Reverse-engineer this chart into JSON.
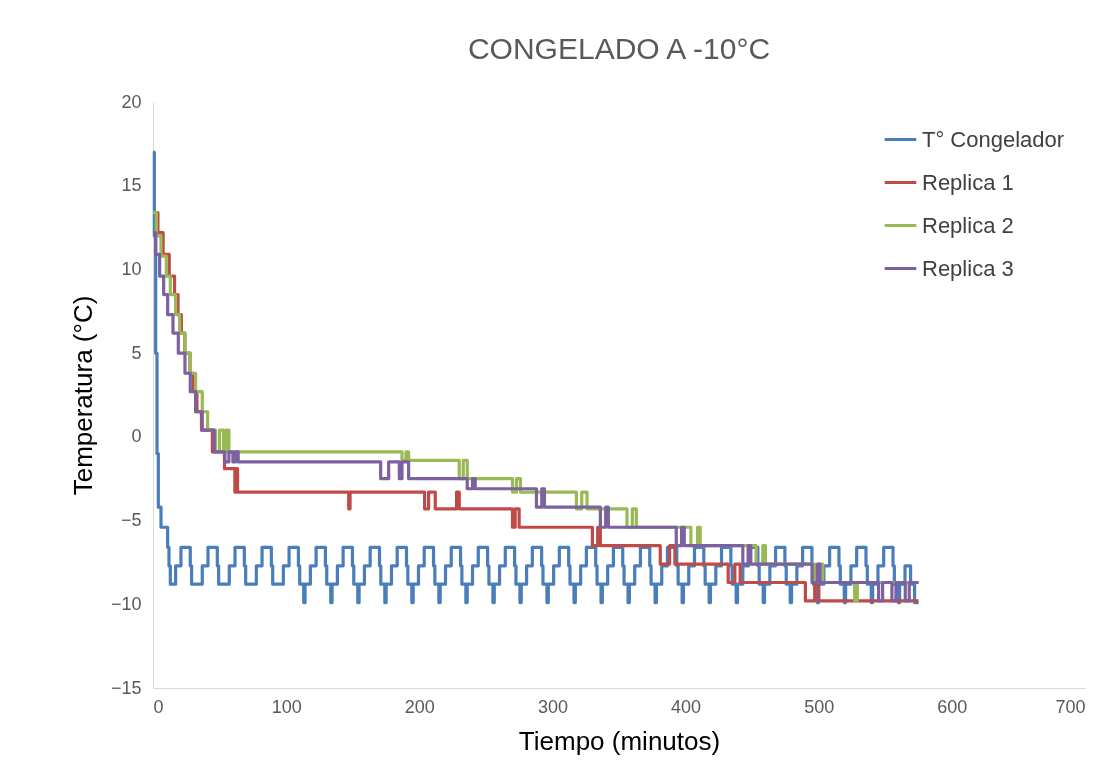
{
  "chart_data": {
    "type": "step",
    "title": "CONGELADO A -10°C",
    "xlabel": "Tiempo (minutos)",
    "ylabel": "Temperatura (°C)",
    "xlim": [
      0,
      700
    ],
    "xticks": [
      0,
      100,
      200,
      300,
      400,
      500,
      600,
      700
    ],
    "ylim": [
      -15,
      20
    ],
    "yticks": [
      -15,
      -10,
      -5,
      0,
      5,
      10,
      15,
      20
    ],
    "grid": false,
    "legend": "top right",
    "marker": "none",
    "line_style": "solid",
    "series": [
      {
        "name": "T° Congelador",
        "color": "#4a7ebb",
        "x": [
          0,
          1,
          2,
          3,
          4,
          6,
          11,
          12,
          13,
          17,
          21,
          28,
          29,
          37,
          41.3,
          48.3,
          49.3,
          57.3,
          61.6,
          68.6,
          69.6,
          77.6,
          81.9,
          88.9,
          89.9,
          97.9,
          102.2,
          109.2,
          110.2,
          113.2,
          114.2,
          118.2,
          122.5,
          129.5,
          130.5,
          133.5,
          134.5,
          138.5,
          142.8,
          149.8,
          150.8,
          153.8,
          154.8,
          158.8,
          163.1,
          170.1,
          171.1,
          174.1,
          175.1,
          179.1,
          183.4,
          190.4,
          191.4,
          194.4,
          195.4,
          199.4,
          203.7,
          210.7,
          211.7,
          214.7,
          215.7,
          219.7,
          224,
          231,
          232,
          235,
          236,
          240,
          244.3,
          251.3,
          252.3,
          255.3,
          256.3,
          260.3,
          264.6,
          271.6,
          272.6,
          275.6,
          276.6,
          280.6,
          284.9,
          291.9,
          292.9,
          295.9,
          296.9,
          300.9,
          305.2,
          312.2,
          313.2,
          316.2,
          317.2,
          321.2,
          325.5,
          332.5,
          333.5,
          336.5,
          337.5,
          341.5,
          345.8,
          352.8,
          353.8,
          356.8,
          357.8,
          361.8,
          366.1,
          373.1,
          374.1,
          377.1,
          378.1,
          382.1,
          386.4,
          393.4,
          394.4,
          397.4,
          398.4,
          402.4,
          406.7,
          413.7,
          414.7,
          417.7,
          418.7,
          422.7,
          427,
          434,
          435,
          438,
          439,
          443,
          447.3,
          454.3,
          455.3,
          458.3,
          459.3,
          463.3,
          467.6,
          474.6,
          475.6,
          478.6,
          479.6,
          483.6,
          487.9,
          494.9,
          495.9,
          498.9,
          499.9,
          503.9,
          508.2,
          515.2,
          516.2,
          519.2,
          520.2,
          524.2,
          528.5,
          535.5,
          536.5,
          539.5,
          540.5,
          544.5,
          548.8,
          555.8,
          556.8,
          559.8,
          560.8,
          564.8,
          569,
          572,
          575
        ],
        "values": [
          17,
          12,
          5,
          -1,
          -4.2,
          -5.4,
          -6.6,
          -7.7,
          -8.8,
          -7.7,
          -6.6,
          -7.7,
          -8.8,
          -7.7,
          -6.6,
          -7.7,
          -8.8,
          -7.7,
          -6.6,
          -7.7,
          -8.8,
          -7.7,
          -6.6,
          -7.7,
          -8.8,
          -7.7,
          -6.6,
          -7.7,
          -8.8,
          -9.9,
          -8.8,
          -7.7,
          -6.6,
          -7.7,
          -8.8,
          -9.9,
          -8.8,
          -7.7,
          -6.6,
          -7.7,
          -8.8,
          -9.9,
          -8.8,
          -7.7,
          -6.6,
          -7.7,
          -8.8,
          -9.9,
          -8.8,
          -7.7,
          -6.6,
          -7.7,
          -8.8,
          -9.9,
          -8.8,
          -7.7,
          -6.6,
          -7.7,
          -8.8,
          -9.9,
          -8.8,
          -7.7,
          -6.6,
          -7.7,
          -8.8,
          -9.9,
          -8.8,
          -7.7,
          -6.6,
          -7.7,
          -8.8,
          -9.9,
          -8.8,
          -7.7,
          -6.6,
          -7.7,
          -8.8,
          -9.9,
          -8.8,
          -7.7,
          -6.6,
          -7.7,
          -8.8,
          -9.9,
          -8.8,
          -7.7,
          -6.6,
          -7.7,
          -8.8,
          -9.9,
          -8.8,
          -7.7,
          -6.6,
          -7.7,
          -8.8,
          -9.9,
          -8.8,
          -7.7,
          -6.6,
          -7.7,
          -8.8,
          -9.9,
          -8.8,
          -7.7,
          -6.6,
          -7.7,
          -8.8,
          -9.9,
          -8.8,
          -7.7,
          -6.6,
          -7.7,
          -8.8,
          -9.9,
          -8.8,
          -7.7,
          -6.6,
          -7.7,
          -8.8,
          -9.9,
          -8.8,
          -7.7,
          -6.6,
          -7.7,
          -8.8,
          -9.9,
          -8.8,
          -7.7,
          -6.6,
          -7.7,
          -8.8,
          -9.9,
          -8.8,
          -7.7,
          -6.6,
          -7.7,
          -8.8,
          -9.9,
          -8.8,
          -7.7,
          -6.6,
          -7.7,
          -8.8,
          -9.9,
          -8.8,
          -7.7,
          -6.6,
          -7.7,
          -8.8,
          -9.9,
          -8.8,
          -7.7,
          -6.6,
          -7.7,
          -8.8,
          -9.9,
          -8.8,
          -7.7,
          -6.6,
          -7.7,
          -8.8,
          -9.9,
          -8.8,
          -7.7,
          -8.8,
          -9.9,
          -9.9
        ]
      },
      {
        "name": "Replica 1",
        "color": "#be4b48",
        "x": [
          0,
          3.7,
          7.6,
          12.2,
          16.2,
          18.8,
          21.3,
          23.9,
          27.8,
          30.4,
          33,
          36.4,
          44.6,
          53.7,
          61.5,
          62.5,
          63.5,
          147,
          148,
          204,
          207,
          212,
          228,
          230,
          270,
          272,
          275,
          330,
          334,
          336,
          381,
          388,
          392,
          432,
          437,
          441,
          490,
          497,
          500,
          575
        ],
        "values": [
          13.4,
          12.2,
          10.9,
          9.6,
          8.5,
          7.3,
          6.2,
          5,
          3.8,
          2.7,
          1.5,
          0.4,
          -0.9,
          -1.9,
          -3.3,
          -1.9,
          -3.3,
          -4.3,
          -3.3,
          -4.3,
          -3.3,
          -4.3,
          -3.3,
          -4.3,
          -5.4,
          -4.3,
          -5.4,
          -6.5,
          -5.4,
          -6.5,
          -7.6,
          -6.5,
          -7.6,
          -8.7,
          -7.6,
          -8.7,
          -9.8,
          -8.7,
          -9.8,
          -9.8
        ]
      },
      {
        "name": "Replica 2",
        "color": "#98b954",
        "x": [
          0,
          2.5,
          6,
          10,
          13,
          17,
          20,
          24,
          28,
          32,
          37,
          41,
          47,
          50,
          53,
          55,
          57,
          187,
          190,
          192,
          230,
          233,
          236,
          270,
          273,
          276,
          318,
          322,
          326,
          356,
          360,
          363,
          404,
          409,
          411,
          453,
          458,
          460,
          497,
          500,
          503,
          527,
          529,
          575
        ],
        "values": [
          13.4,
          12,
          10.8,
          9.6,
          8.5,
          7.3,
          6.2,
          5,
          3.8,
          2.7,
          1.5,
          0.4,
          -0.9,
          0.4,
          -0.9,
          0.4,
          -0.9,
          -1.4,
          -0.9,
          -1.4,
          -2.5,
          -1.4,
          -2.5,
          -3.3,
          -2.5,
          -3.3,
          -4.3,
          -3.3,
          -4.3,
          -5.4,
          -4.3,
          -5.4,
          -6.5,
          -5.4,
          -6.5,
          -7.6,
          -6.5,
          -7.6,
          -8.7,
          -7.6,
          -8.7,
          -9.8,
          -8.7,
          -8.7
        ]
      },
      {
        "name": "Replica 3",
        "color": "#7d60a0",
        "x": [
          0,
          2,
          5,
          8,
          11,
          15,
          19,
          24,
          28,
          32,
          37,
          46,
          54,
          57,
          60,
          62,
          64,
          171,
          177,
          185,
          187,
          192,
          236,
          240,
          242,
          288,
          292,
          294,
          336,
          340,
          342,
          393,
          397,
          399,
          443,
          447,
          449,
          495,
          499,
          501,
          545,
          548,
          555,
          558,
          565,
          568,
          575
        ],
        "values": [
          12.2,
          10.9,
          9.6,
          8.5,
          7.3,
          6.2,
          5,
          3.8,
          2.7,
          1.5,
          0.4,
          -0.9,
          -1.5,
          -0.9,
          -1.5,
          -0.9,
          -1.5,
          -2.5,
          -1.5,
          -2.5,
          -1.5,
          -2.5,
          -3.1,
          -2.5,
          -3.1,
          -4.2,
          -3.1,
          -4.2,
          -5.4,
          -4.2,
          -5.4,
          -6.5,
          -5.4,
          -6.5,
          -7.6,
          -6.5,
          -7.6,
          -8.7,
          -7.6,
          -8.7,
          -9.8,
          -8.7,
          -9.8,
          -8.7,
          -9.8,
          -8.7,
          -8.7
        ]
      }
    ]
  }
}
